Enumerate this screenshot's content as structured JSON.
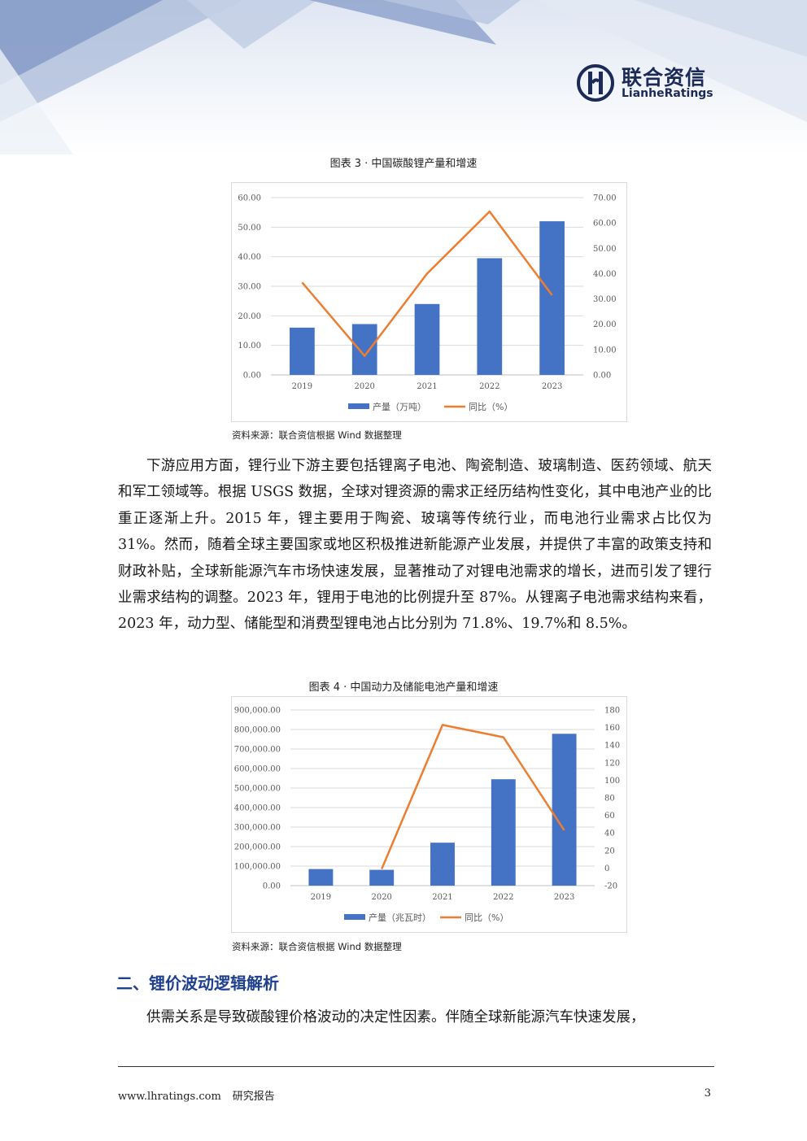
{
  "logo": {
    "cn": "联合资信",
    "en": "LianheRatings"
  },
  "figure3": {
    "title": "图表 3 · 中国碳酸锂产量和增速",
    "source": "资料来源：联合资信根据 Wind 数据整理"
  },
  "figure4": {
    "title": "图表 4 · 中国动力及储能电池产量和增速",
    "source": "资料来源：联合资信根据 Wind 数据整理"
  },
  "paragraph1": "下游应用方面，锂行业下游主要包括锂离子电池、陶瓷制造、玻璃制造、医药领域、航天和军工领域等。根据 USGS 数据，全球对锂资源的需求正经历结构性变化，其中电池产业的比重正逐渐上升。2015 年，锂主要用于陶瓷、玻璃等传统行业，而电池行业需求占比仅为 31%。然而，随着全球主要国家或地区积极推进新能源产业发展，并提供了丰富的政策支持和财政补贴，全球新能源汽车市场快速发展，显著推动了对锂电池需求的增长，进而引发了锂行业需求结构的调整。2023 年，锂用于电池的比例提升至 87%。从锂离子电池需求结构来看，2023 年，动力型、储能型和消费型锂电池占比分别为 71.8%、19.7%和 8.5%。",
  "section_heading": "二、锂价波动逻辑解析",
  "paragraph2": "供需关系是导致碳酸锂价格波动的决定性因素。伴随全球新能源汽车快速发展，",
  "footer": {
    "website": "www.lhratings.com",
    "report_type": "研究报告",
    "page": "3"
  },
  "colors": {
    "bar": "#4472c4",
    "line": "#ed7d31",
    "heading": "#1f3f8f",
    "logo": "#1b2a57"
  },
  "chart_data": [
    {
      "type": "bar",
      "categories": [
        "2019",
        "2020",
        "2021",
        "2022",
        "2023"
      ],
      "series": [
        {
          "name": "产量（万吨）",
          "type": "bar",
          "axis": "left",
          "values": [
            16.0,
            17.2,
            24.0,
            39.5,
            52.0
          ]
        },
        {
          "name": "同比（%）",
          "type": "line",
          "axis": "right",
          "values": [
            36.5,
            7.5,
            40.0,
            64.5,
            31.5
          ]
        }
      ],
      "y_left": {
        "min": 0,
        "max": 60,
        "step": 10,
        "ticks": [
          "0.00",
          "10.00",
          "20.00",
          "30.00",
          "40.00",
          "50.00",
          "60.00"
        ]
      },
      "y_right": {
        "min": 0,
        "max": 70,
        "step": 10,
        "ticks": [
          "0.00",
          "10.00",
          "20.00",
          "30.00",
          "40.00",
          "50.00",
          "60.00",
          "70.00"
        ]
      },
      "grid": true,
      "legend": "bottom"
    },
    {
      "type": "bar",
      "categories": [
        "2019",
        "2020",
        "2021",
        "2022",
        "2023"
      ],
      "series": [
        {
          "name": "产量（兆瓦时）",
          "type": "bar",
          "axis": "left",
          "values": [
            85000,
            81000,
            220000,
            545000,
            778000
          ]
        },
        {
          "name": "同比（%）",
          "type": "line",
          "axis": "right",
          "values": [
            null,
            -1,
            163,
            149,
            43
          ]
        }
      ],
      "y_left": {
        "min": 0,
        "max": 900000,
        "step": 100000,
        "ticks": [
          "0.00",
          "100,000.00",
          "200,000.00",
          "300,000.00",
          "400,000.00",
          "500,000.00",
          "600,000.00",
          "700,000.00",
          "800,000.00",
          "900,000.00"
        ]
      },
      "y_right": {
        "min": -20,
        "max": 180,
        "step": 20,
        "ticks": [
          "-20",
          "0",
          "20",
          "40",
          "60",
          "80",
          "100",
          "120",
          "140",
          "160",
          "180"
        ]
      },
      "grid": true,
      "legend": "bottom"
    }
  ]
}
